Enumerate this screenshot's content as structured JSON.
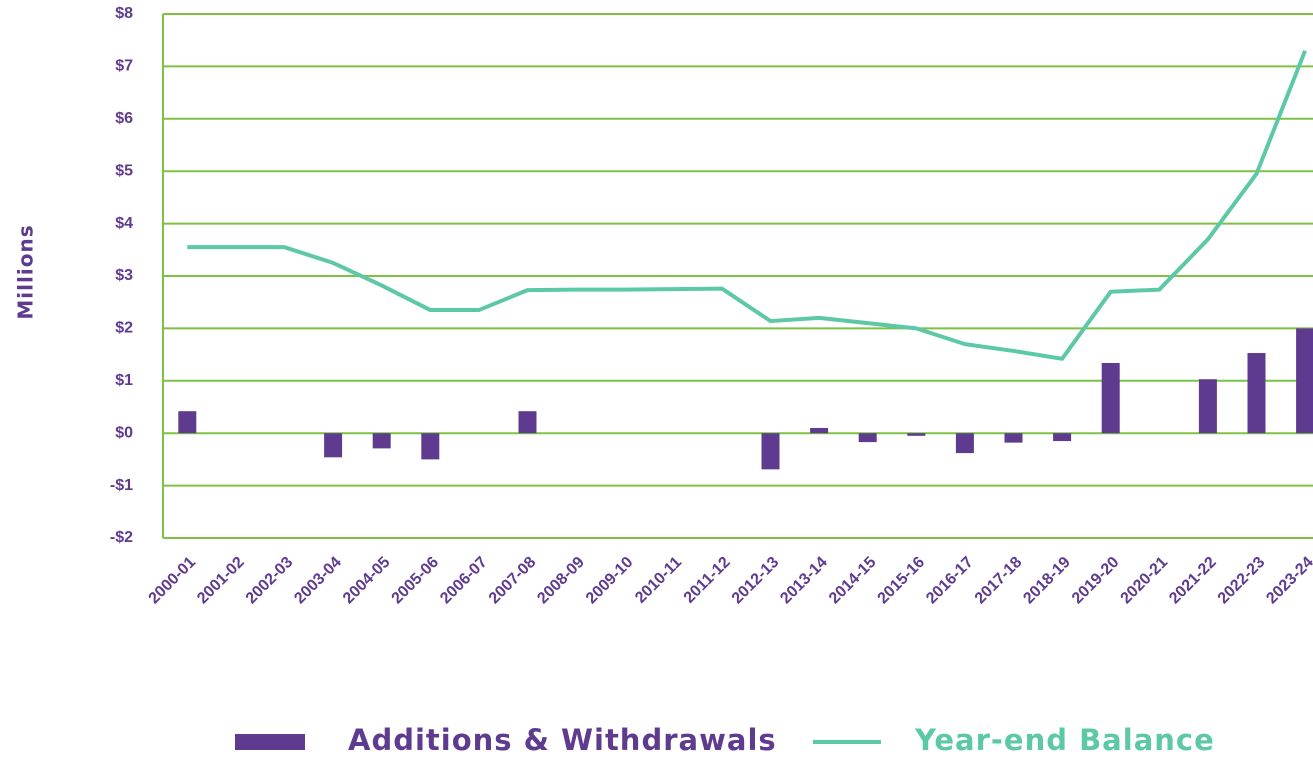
{
  "chart_data": {
    "type": "bar-line",
    "y_label": "Millions",
    "categories": [
      "2000-01",
      "2001-02",
      "2002-03",
      "2003-04",
      "2004-05",
      "2005-06",
      "2006-07",
      "2007-08",
      "2008-09",
      "2009-10",
      "2010-11",
      "2011-12",
      "2012-13",
      "2013-14",
      "2014-15",
      "2015-16",
      "2016-17",
      "2017-18",
      "2018-19",
      "2019-20",
      "2020-21",
      "2021-22",
      "2022-23",
      "2023-24"
    ],
    "series": [
      {
        "name": "Additions & Withdrawals",
        "type": "bar",
        "color": "#5f3b8f",
        "values": [
          0.42,
          0,
          0,
          -0.46,
          -0.29,
          -0.5,
          0,
          0.42,
          0,
          0,
          0,
          0,
          -0.69,
          0.1,
          -0.17,
          -0.05,
          -0.38,
          -0.18,
          -0.15,
          1.34,
          0,
          1.03,
          1.53,
          2.0
        ]
      },
      {
        "name": "Year-end Balance",
        "type": "line",
        "color": "#5cc8a8",
        "values": [
          3.55,
          3.55,
          3.55,
          3.25,
          2.82,
          2.35,
          2.35,
          2.73,
          2.74,
          2.74,
          2.75,
          2.76,
          2.14,
          2.2,
          2.1,
          2.0,
          1.7,
          1.57,
          1.42,
          2.7,
          2.74,
          3.7,
          4.95,
          7.3
        ]
      }
    ],
    "ylim": [
      -2,
      8
    ],
    "yticks": [
      {
        "value": -2,
        "label": "-$2"
      },
      {
        "value": -1,
        "label": "-$1"
      },
      {
        "value": 0,
        "label": "$0"
      },
      {
        "value": 1,
        "label": "$1"
      },
      {
        "value": 2,
        "label": "$2"
      },
      {
        "value": 3,
        "label": "$3"
      },
      {
        "value": 4,
        "label": "$4"
      },
      {
        "value": 5,
        "label": "$5"
      },
      {
        "value": 6,
        "label": "$6"
      },
      {
        "value": 7,
        "label": "$7"
      },
      {
        "value": 8,
        "label": "$8"
      }
    ],
    "grid": true,
    "grid_color": "#7dc242",
    "legend": "bottom"
  }
}
